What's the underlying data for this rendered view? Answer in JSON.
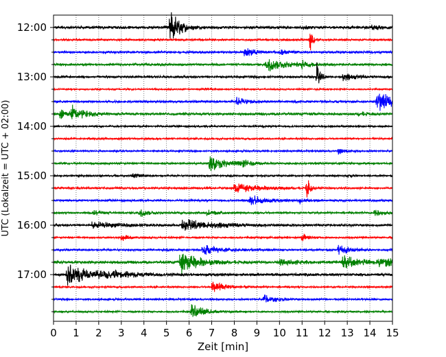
{
  "chart_data": {
    "type": "line",
    "chart_kind": "helicorder seismogram",
    "xlabel": "Zeit  [min]",
    "ylabel": "UTC (Lokalzeit = UTC + 02:00)",
    "xlim": [
      0,
      15
    ],
    "x_ticks": [
      "0",
      "1",
      "2",
      "3",
      "4",
      "5",
      "6",
      "7",
      "8",
      "9",
      "10",
      "11",
      "12",
      "13",
      "14",
      "15"
    ],
    "y_tick_labels": [
      "12:00",
      "13:00",
      "14:00",
      "15:00",
      "16:00",
      "17:00"
    ],
    "grid": "vertical dotted at each minute",
    "trace_colors": [
      "#000000",
      "#ff0000",
      "#0000ff",
      "#008000"
    ],
    "trace_start_times": [
      "12:00",
      "12:15",
      "12:30",
      "12:45",
      "13:00",
      "13:15",
      "13:30",
      "13:45",
      "14:00",
      "14:15",
      "14:30",
      "14:45",
      "15:00",
      "15:15",
      "15:30",
      "15:45",
      "16:00",
      "16:15",
      "16:30",
      "16:45",
      "17:00",
      "17:15",
      "17:30",
      "17:45"
    ],
    "traces": [
      {
        "noise": 0.1,
        "events": [
          {
            "t": 5.15,
            "amp": 1.55,
            "dur": 0.35
          },
          {
            "t": 11.0,
            "amp": 0.12,
            "dur": 0.3
          },
          {
            "t": 14.1,
            "amp": 0.15,
            "dur": 0.4
          }
        ]
      },
      {
        "noise": 0.07,
        "events": [
          {
            "t": 11.35,
            "amp": 1.15,
            "dur": 0.1
          }
        ]
      },
      {
        "noise": 0.08,
        "events": [
          {
            "t": 8.45,
            "amp": 0.35,
            "dur": 0.4
          },
          {
            "t": 10.0,
            "amp": 0.22,
            "dur": 0.3
          }
        ]
      },
      {
        "noise": 0.08,
        "events": [
          {
            "t": 9.4,
            "amp": 0.55,
            "dur": 0.7
          },
          {
            "t": 11.0,
            "amp": 0.25,
            "dur": 0.3
          }
        ]
      },
      {
        "noise": 0.08,
        "events": [
          {
            "t": 11.65,
            "amp": 0.9,
            "dur": 0.15
          },
          {
            "t": 12.8,
            "amp": 0.25,
            "dur": 0.5
          }
        ]
      },
      {
        "noise": 0.05,
        "events": [
          {
            "t": 6.6,
            "amp": 0.12,
            "dur": 0.4
          }
        ]
      },
      {
        "noise": 0.08,
        "events": [
          {
            "t": 8.1,
            "amp": 0.25,
            "dur": 0.5
          },
          {
            "t": 14.3,
            "amp": 0.7,
            "dur": 0.9
          }
        ]
      },
      {
        "noise": 0.09,
        "events": [
          {
            "t": 0.3,
            "amp": 0.35,
            "dur": 0.4
          },
          {
            "t": 0.8,
            "amp": 0.55,
            "dur": 0.5
          },
          {
            "t": 13.5,
            "amp": 0.12,
            "dur": 0.4
          }
        ]
      },
      {
        "noise": 0.06,
        "events": []
      },
      {
        "noise": 0.06,
        "events": []
      },
      {
        "noise": 0.06,
        "events": [
          {
            "t": 12.6,
            "amp": 0.22,
            "dur": 0.3
          }
        ]
      },
      {
        "noise": 0.07,
        "events": [
          {
            "t": 6.9,
            "amp": 0.55,
            "dur": 0.8
          },
          {
            "t": 8.4,
            "amp": 0.18,
            "dur": 0.3
          }
        ]
      },
      {
        "noise": 0.06,
        "events": [
          {
            "t": 3.5,
            "amp": 0.18,
            "dur": 0.3
          },
          {
            "t": 13.0,
            "amp": 0.1,
            "dur": 0.3
          }
        ]
      },
      {
        "noise": 0.07,
        "events": [
          {
            "t": 8.0,
            "amp": 0.3,
            "dur": 1.2
          },
          {
            "t": 11.2,
            "amp": 1.15,
            "dur": 0.1
          }
        ]
      },
      {
        "noise": 0.07,
        "events": [
          {
            "t": 8.7,
            "amp": 0.4,
            "dur": 0.6
          },
          {
            "t": 10.9,
            "amp": 0.2,
            "dur": 0.3
          }
        ]
      },
      {
        "noise": 0.07,
        "events": [
          {
            "t": 1.8,
            "amp": 0.2,
            "dur": 0.3
          },
          {
            "t": 3.8,
            "amp": 0.3,
            "dur": 0.4
          },
          {
            "t": 6.8,
            "amp": 0.22,
            "dur": 0.4
          },
          {
            "t": 14.2,
            "amp": 0.2,
            "dur": 0.4
          }
        ]
      },
      {
        "noise": 0.08,
        "events": [
          {
            "t": 1.7,
            "amp": 0.22,
            "dur": 1.2
          },
          {
            "t": 5.7,
            "amp": 0.4,
            "dur": 1.4
          }
        ]
      },
      {
        "noise": 0.06,
        "events": [
          {
            "t": 3.0,
            "amp": 0.3,
            "dur": 0.3
          },
          {
            "t": 11.0,
            "amp": 0.25,
            "dur": 0.3
          }
        ]
      },
      {
        "noise": 0.07,
        "events": [
          {
            "t": 6.6,
            "amp": 0.35,
            "dur": 0.8
          },
          {
            "t": 12.6,
            "amp": 0.35,
            "dur": 0.5
          }
        ]
      },
      {
        "noise": 0.1,
        "events": [
          {
            "t": 5.6,
            "amp": 0.75,
            "dur": 0.8
          },
          {
            "t": 10.0,
            "amp": 0.2,
            "dur": 1.0
          },
          {
            "t": 12.8,
            "amp": 0.4,
            "dur": 0.8
          },
          {
            "t": 14.4,
            "amp": 0.3,
            "dur": 0.7
          }
        ]
      },
      {
        "noise": 0.1,
        "events": [
          {
            "t": 0.6,
            "amp": 0.7,
            "dur": 1.2
          },
          {
            "t": 2.3,
            "amp": 0.2,
            "dur": 0.8
          }
        ]
      },
      {
        "noise": 0.06,
        "events": [
          {
            "t": 7.0,
            "amp": 0.45,
            "dur": 0.6
          }
        ]
      },
      {
        "noise": 0.06,
        "events": [
          {
            "t": 9.3,
            "amp": 0.35,
            "dur": 0.5
          }
        ]
      },
      {
        "noise": 0.06,
        "events": [
          {
            "t": 6.1,
            "amp": 0.5,
            "dur": 0.6
          }
        ]
      }
    ]
  }
}
